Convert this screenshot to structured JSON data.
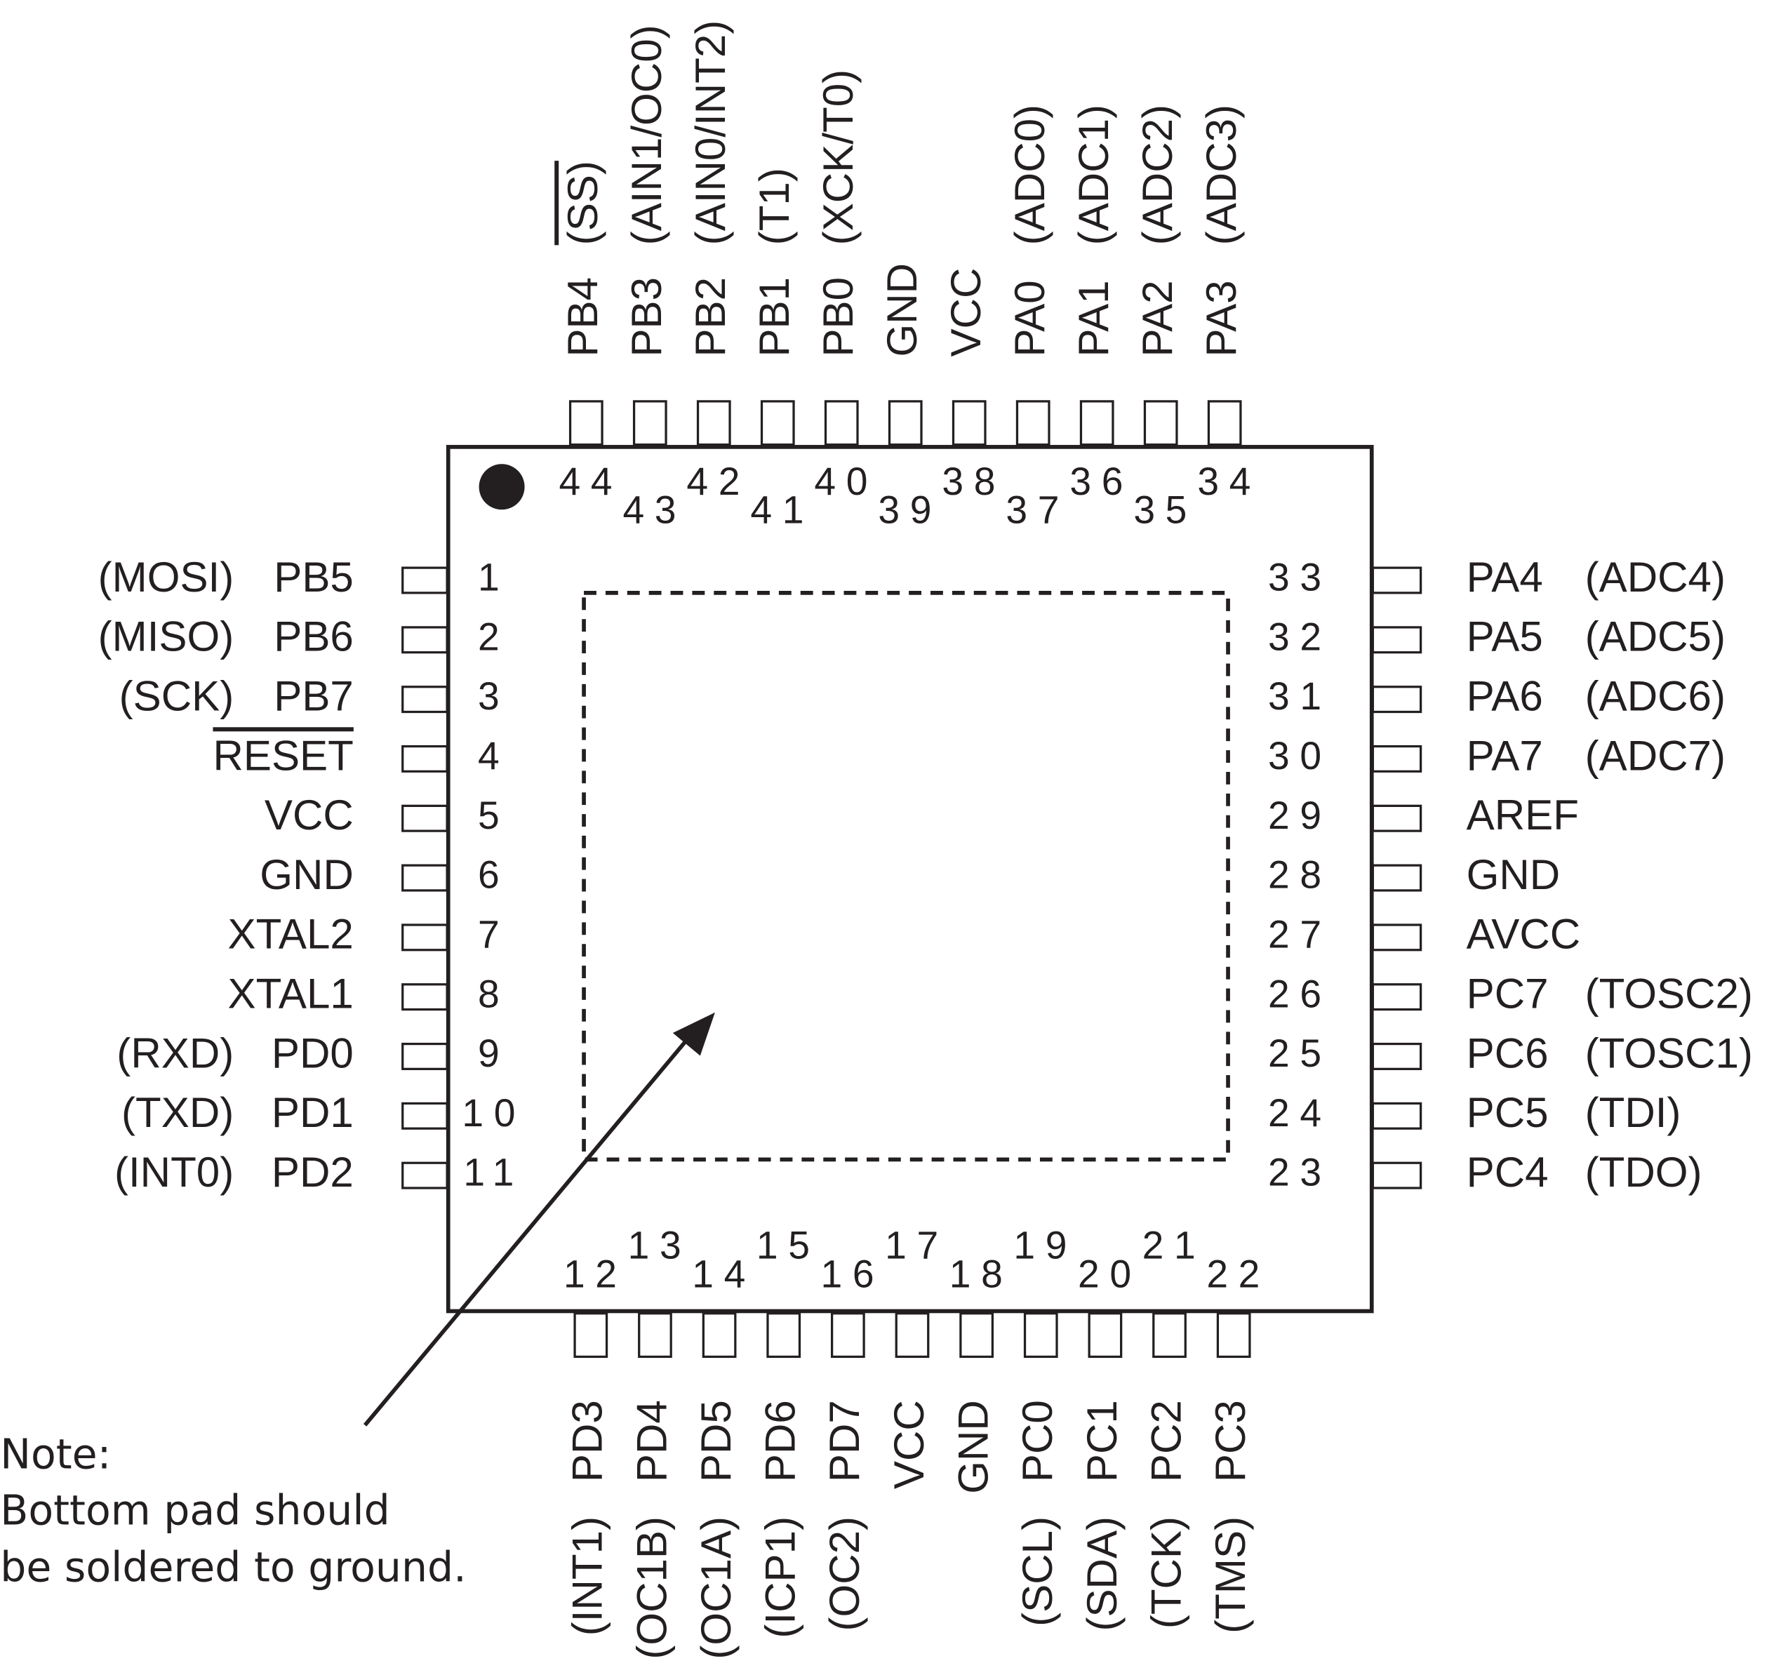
{
  "pins": [
    {
      "number": 1,
      "name": "PB5",
      "alt": "(MOSI)"
    },
    {
      "number": 2,
      "name": "PB6",
      "alt": "(MISO)"
    },
    {
      "number": 3,
      "name": "PB7",
      "alt": "(SCK)"
    },
    {
      "number": 4,
      "name": "RESET"
    },
    {
      "number": 5,
      "name": "VCC"
    },
    {
      "number": 6,
      "name": "GND"
    },
    {
      "number": 7,
      "name": "XTAL2"
    },
    {
      "number": 8,
      "name": "XTAL1"
    },
    {
      "number": 9,
      "name": "PD0",
      "alt": "(RXD)"
    },
    {
      "number": 10,
      "name": "PD1",
      "alt": "(TXD)"
    },
    {
      "number": 11,
      "name": "PD2",
      "alt": "(INT0)"
    },
    {
      "number": 12,
      "name": "PD3",
      "alt": "(INT1)"
    },
    {
      "number": 13,
      "name": "PD4",
      "alt": "(OC1B)"
    },
    {
      "number": 14,
      "name": "PD5",
      "alt": "(OC1A)"
    },
    {
      "number": 15,
      "name": "PD6",
      "alt": "(ICP1)"
    },
    {
      "number": 16,
      "name": "PD7",
      "alt": "(OC2)"
    },
    {
      "number": 17,
      "name": "VCC"
    },
    {
      "number": 18,
      "name": "GND"
    },
    {
      "number": 19,
      "name": "PC0",
      "alt": "(SCL)"
    },
    {
      "number": 20,
      "name": "PC1",
      "alt": "(SDA)"
    },
    {
      "number": 21,
      "name": "PC2",
      "alt": "(TCK)"
    },
    {
      "number": 22,
      "name": "PC3",
      "alt": "(TMS)"
    },
    {
      "number": 23,
      "name": "PC4",
      "alt": "(TDO)"
    },
    {
      "number": 24,
      "name": "PC5",
      "alt": "(TDI)"
    },
    {
      "number": 25,
      "name": "PC6",
      "alt": "(TOSC1)"
    },
    {
      "number": 26,
      "name": "PC7",
      "alt": "(TOSC2)"
    },
    {
      "number": 27,
      "name": "AVCC"
    },
    {
      "number": 28,
      "name": "GND"
    },
    {
      "number": 29,
      "name": "AREF"
    },
    {
      "number": 30,
      "name": "PA7",
      "alt": "(ADC7)"
    },
    {
      "number": 31,
      "name": "PA6",
      "alt": "(ADC6)"
    },
    {
      "number": 32,
      "name": "PA5",
      "alt": "(ADC5)"
    },
    {
      "number": 33,
      "name": "PA4",
      "alt": "(ADC4)"
    },
    {
      "number": 34,
      "name": "PA3",
      "alt": "(ADC3)"
    },
    {
      "number": 35,
      "name": "PA2",
      "alt": "(ADC2)"
    },
    {
      "number": 36,
      "name": "PA1",
      "alt": "(ADC1)"
    },
    {
      "number": 37,
      "name": "PA0",
      "alt": "(ADC0)"
    },
    {
      "number": 38,
      "name": "VCC"
    },
    {
      "number": 39,
      "name": "GND"
    },
    {
      "number": 40,
      "name": "PB0",
      "alt": "(XCK/T0)"
    },
    {
      "number": 41,
      "name": "PB1",
      "alt": "(T1)"
    },
    {
      "number": 42,
      "name": "PB2",
      "alt": "(AIN0/INT2)"
    },
    {
      "number": 43,
      "name": "PB3",
      "alt": "(AIN1/OC0)"
    },
    {
      "number": 44,
      "name": "PB4",
      "alt": "(SS)"
    }
  ],
  "note": [
    "Note:",
    "Bottom pad should",
    "be soldered to ground."
  ]
}
